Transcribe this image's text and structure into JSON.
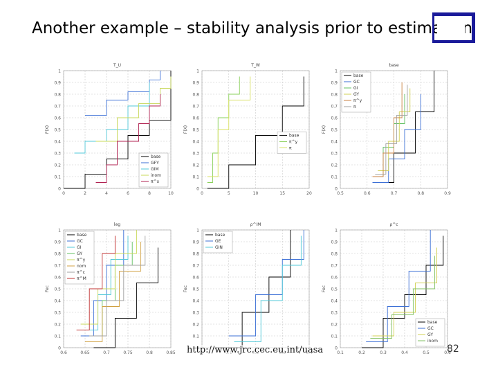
{
  "slide": {
    "title": "Another example – stability analysis prior to estimation",
    "url": "http://www.jrc.cec.eu.int/uasa",
    "page_number": "82"
  },
  "chart_data": [
    {
      "type": "line",
      "title": "T_U",
      "ylabel": "F(X)",
      "xlim": [
        0,
        10
      ],
      "ylim": [
        0,
        1
      ],
      "xticks": [
        "0",
        "2",
        "4",
        "6",
        "8",
        "10"
      ],
      "yticks": [
        "0",
        "0.1",
        "0.2",
        "0.3",
        "0.4",
        "0.5",
        "0.6",
        "0.7",
        "0.8",
        "0.9",
        "1"
      ],
      "legend": "bottom-right",
      "series": [
        {
          "name": "base",
          "color": "#000000",
          "points": [
            [
              0,
              0
            ],
            [
              2,
              0.12
            ],
            [
              4,
              0.25
            ],
            [
              6,
              0.45
            ],
            [
              8,
              0.58
            ],
            [
              10,
              1
            ]
          ]
        },
        {
          "name": "GFY",
          "color": "#3b6fd6",
          "points": [
            [
              2,
              0.62
            ],
            [
              4,
              0.75
            ],
            [
              6,
              0.82
            ],
            [
              8,
              0.92
            ],
            [
              9,
              1
            ]
          ]
        },
        {
          "name": "GIM",
          "color": "#50c8d8",
          "points": [
            [
              1,
              0.3
            ],
            [
              2,
              0.4
            ],
            [
              4,
              0.5
            ],
            [
              6,
              0.7
            ],
            [
              8,
              0.9
            ]
          ]
        },
        {
          "name": "inom",
          "color": "#c8d85a",
          "points": [
            [
              3,
              0.4
            ],
            [
              5,
              0.6
            ],
            [
              7,
              0.72
            ],
            [
              9,
              0.85
            ],
            [
              10,
              0.95
            ]
          ]
        },
        {
          "name": "π^x",
          "color": "#b02050",
          "points": [
            [
              3,
              0.05
            ],
            [
              4,
              0.2
            ],
            [
              5,
              0.4
            ],
            [
              7,
              0.55
            ],
            [
              8,
              0.7
            ],
            [
              9,
              0.8
            ]
          ]
        }
      ]
    },
    {
      "type": "line",
      "title": "T_W",
      "ylabel": "F(X)",
      "xlim": [
        0,
        20
      ],
      "ylim": [
        0,
        1
      ],
      "xticks": [
        "0",
        "5",
        "10",
        "15",
        "20"
      ],
      "yticks": [
        "0",
        "0.1",
        "0.2",
        "0.3",
        "0.4",
        "0.5",
        "0.6",
        "0.7",
        "0.8",
        "0.9",
        "1"
      ],
      "legend": "middle-right",
      "series": [
        {
          "name": "base",
          "color": "#000000",
          "points": [
            [
              1,
              0
            ],
            [
              5,
              0.2
            ],
            [
              10,
              0.45
            ],
            [
              15,
              0.7
            ],
            [
              19,
              0.95
            ]
          ]
        },
        {
          "name": "π^y",
          "color": "#8ad05a",
          "points": [
            [
              1,
              0.05
            ],
            [
              2,
              0.3
            ],
            [
              3,
              0.6
            ],
            [
              5,
              0.8
            ],
            [
              7,
              0.95
            ]
          ]
        },
        {
          "name": "π",
          "color": "#d8e060",
          "points": [
            [
              1,
              0.1
            ],
            [
              3,
              0.5
            ],
            [
              5,
              0.75
            ],
            [
              9,
              0.95
            ]
          ]
        }
      ]
    },
    {
      "type": "line",
      "title": "base",
      "ylabel": "F(X)",
      "xlim": [
        0.5,
        0.9
      ],
      "ylim": [
        0,
        1
      ],
      "xticks": [
        "0.5",
        "0.6",
        "0.7",
        "0.8",
        "0.9"
      ],
      "yticks": [
        "0",
        "0.1",
        "0.2",
        "0.3",
        "0.4",
        "0.5",
        "0.6",
        "0.7",
        "0.8",
        "0.9",
        "1"
      ],
      "legend": "top-left",
      "series": [
        {
          "name": "base",
          "color": "#000000",
          "points": [
            [
              0.62,
              0.05
            ],
            [
              0.7,
              0.3
            ],
            [
              0.78,
              0.65
            ],
            [
              0.85,
              1
            ]
          ]
        },
        {
          "name": "GC",
          "color": "#3b6fd6",
          "points": [
            [
              0.62,
              0.05
            ],
            [
              0.68,
              0.25
            ],
            [
              0.74,
              0.5
            ],
            [
              0.8,
              0.8
            ]
          ]
        },
        {
          "name": "GI",
          "color": "#60c060",
          "points": [
            [
              0.62,
              0.1
            ],
            [
              0.66,
              0.35
            ],
            [
              0.7,
              0.55
            ],
            [
              0.74,
              0.8
            ]
          ]
        },
        {
          "name": "GY",
          "color": "#d0d050",
          "points": [
            [
              0.64,
              0.15
            ],
            [
              0.68,
              0.4
            ],
            [
              0.72,
              0.65
            ],
            [
              0.76,
              0.85
            ]
          ]
        },
        {
          "name": "π^y",
          "color": "#c88040",
          "points": [
            [
              0.62,
              0.1
            ],
            [
              0.66,
              0.3
            ],
            [
              0.7,
              0.6
            ],
            [
              0.73,
              0.9
            ]
          ]
        },
        {
          "name": "π",
          "color": "#a0a0a0",
          "points": [
            [
              0.63,
              0.12
            ],
            [
              0.67,
              0.38
            ],
            [
              0.71,
              0.62
            ],
            [
              0.75,
              0.88
            ]
          ]
        }
      ]
    },
    {
      "type": "line",
      "title": "leg",
      "ylabel": "Fec",
      "xlim": [
        0.6,
        0.85
      ],
      "ylim": [
        0,
        1
      ],
      "xticks": [
        "0.6",
        "0.65",
        "0.7",
        "0.75",
        "0.8",
        "0.85"
      ],
      "yticks": [
        "0",
        "0.1",
        "0.2",
        "0.3",
        "0.4",
        "0.5",
        "0.6",
        "0.7",
        "0.8",
        "0.9",
        "1"
      ],
      "legend": "top-left",
      "series": [
        {
          "name": "base",
          "color": "#000000",
          "points": [
            [
              0.67,
              0
            ],
            [
              0.72,
              0.25
            ],
            [
              0.77,
              0.55
            ],
            [
              0.82,
              0.85
            ]
          ]
        },
        {
          "name": "GC",
          "color": "#3b6fd6",
          "points": [
            [
              0.64,
              0.1
            ],
            [
              0.67,
              0.4
            ],
            [
              0.7,
              0.7
            ],
            [
              0.74,
              1
            ]
          ]
        },
        {
          "name": "GI",
          "color": "#50c8d8",
          "points": [
            [
              0.65,
              0.15
            ],
            [
              0.68,
              0.45
            ],
            [
              0.71,
              0.75
            ],
            [
              0.75,
              0.95
            ]
          ]
        },
        {
          "name": "GY",
          "color": "#60c060",
          "points": [
            [
              0.66,
              0.1
            ],
            [
              0.69,
              0.4
            ],
            [
              0.72,
              0.7
            ],
            [
              0.76,
              0.9
            ]
          ]
        },
        {
          "name": "π^y",
          "color": "#c8d85a",
          "points": [
            [
              0.64,
              0.2
            ],
            [
              0.68,
              0.5
            ],
            [
              0.72,
              0.8
            ],
            [
              0.77,
              1
            ]
          ]
        },
        {
          "name": "nom",
          "color": "#d0a040",
          "points": [
            [
              0.65,
              0.05
            ],
            [
              0.69,
              0.35
            ],
            [
              0.73,
              0.65
            ],
            [
              0.78,
              0.9
            ]
          ]
        },
        {
          "name": "π^c",
          "color": "#a0a0a0",
          "points": [
            [
              0.66,
              0.1
            ],
            [
              0.7,
              0.4
            ],
            [
              0.74,
              0.7
            ],
            [
              0.79,
              0.95
            ]
          ]
        },
        {
          "name": "π^M",
          "color": "#c03030",
          "points": [
            [
              0.63,
              0.15
            ],
            [
              0.66,
              0.5
            ],
            [
              0.69,
              0.8
            ],
            [
              0.72,
              0.95
            ]
          ]
        }
      ]
    },
    {
      "type": "line",
      "title": "ρ^IM",
      "ylabel": "Fec",
      "xlim": [
        0,
        0.4
      ],
      "ylim": [
        0,
        1
      ],
      "xticks": [
        "0",
        "0.1",
        "0.2",
        "0.3",
        "0.4"
      ],
      "yticks": [
        "0",
        "0.1",
        "0.2",
        "0.3",
        "0.4",
        "0.5",
        "0.6",
        "0.7",
        "0.8",
        "0.9",
        "1"
      ],
      "legend": "top-left",
      "series": [
        {
          "name": "base",
          "color": "#000000",
          "points": [
            [
              0.05,
              0
            ],
            [
              0.15,
              0.3
            ],
            [
              0.25,
              0.6
            ],
            [
              0.33,
              1
            ]
          ]
        },
        {
          "name": "GE",
          "color": "#3b6fd6",
          "points": [
            [
              0.1,
              0.1
            ],
            [
              0.2,
              0.45
            ],
            [
              0.3,
              0.75
            ],
            [
              0.38,
              1
            ]
          ]
        },
        {
          "name": "GIN",
          "color": "#50c8d8",
          "points": [
            [
              0.12,
              0.05
            ],
            [
              0.22,
              0.4
            ],
            [
              0.3,
              0.7
            ],
            [
              0.37,
              0.95
            ]
          ]
        }
      ]
    },
    {
      "type": "line",
      "title": "ρ^c",
      "ylabel": "Fec",
      "xlim": [
        0.1,
        0.6
      ],
      "ylim": [
        0,
        1
      ],
      "xticks": [
        "0.1",
        "0.2",
        "0.3",
        "0.4",
        "0.5",
        "0.6"
      ],
      "yticks": [
        "0",
        "0.1",
        "0.2",
        "0.3",
        "0.4",
        "0.5",
        "0.6",
        "0.7",
        "0.8",
        "0.9",
        "1"
      ],
      "legend": "bottom-right",
      "series": [
        {
          "name": "base",
          "color": "#000000",
          "points": [
            [
              0.2,
              0
            ],
            [
              0.3,
              0.25
            ],
            [
              0.4,
              0.45
            ],
            [
              0.5,
              0.7
            ],
            [
              0.58,
              0.95
            ]
          ]
        },
        {
          "name": "GC",
          "color": "#3b6fd6",
          "points": [
            [
              0.22,
              0.05
            ],
            [
              0.32,
              0.35
            ],
            [
              0.42,
              0.65
            ],
            [
              0.52,
              1
            ]
          ]
        },
        {
          "name": "GY",
          "color": "#d0d050",
          "points": [
            [
              0.25,
              0.1
            ],
            [
              0.35,
              0.3
            ],
            [
              0.45,
              0.55
            ],
            [
              0.55,
              0.85
            ]
          ]
        },
        {
          "name": "inom",
          "color": "#80c060",
          "points": [
            [
              0.24,
              0.08
            ],
            [
              0.34,
              0.28
            ],
            [
              0.44,
              0.5
            ],
            [
              0.54,
              0.78
            ]
          ]
        }
      ]
    }
  ]
}
